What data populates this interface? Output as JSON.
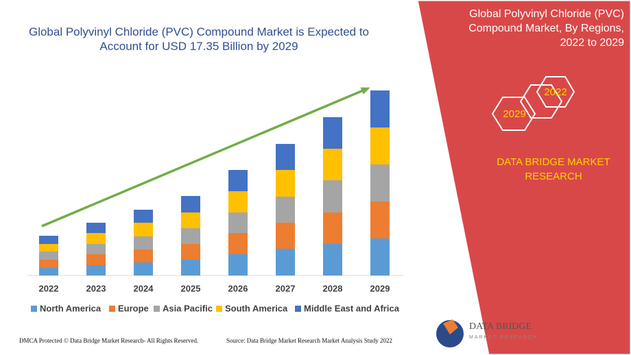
{
  "chart_data": {
    "type": "stacked-bar",
    "title": "Global Polyvinyl Chloride (PVC) Compound Market is Expected to Account for USD 17.35 Billion by 2029",
    "categories": [
      "2022",
      "2023",
      "2024",
      "2025",
      "2026",
      "2027",
      "2028",
      "2029"
    ],
    "series": [
      {
        "name": "North America",
        "color": "#5b9bd5",
        "values": [
          11,
          15,
          19,
          23,
          31,
          39,
          46,
          54
        ]
      },
      {
        "name": "Europe",
        "color": "#ed7d31",
        "values": [
          12,
          16,
          19,
          23,
          31,
          38,
          46,
          54
        ]
      },
      {
        "name": "Asia Pacific",
        "color": "#a5a5a5",
        "values": [
          12,
          15,
          19,
          23,
          30,
          38,
          47,
          54
        ]
      },
      {
        "name": "South America",
        "color": "#ffc000",
        "values": [
          11,
          16,
          20,
          23,
          31,
          39,
          46,
          54
        ]
      },
      {
        "name": "Middle East and Africa",
        "color": "#4472c4",
        "values": [
          12,
          15,
          19,
          24,
          31,
          38,
          46,
          54
        ]
      }
    ],
    "trend_color": "#70ad47"
  },
  "panel": {
    "title": "Global Polyvinyl Chloride (PVC) Compound Market, By Regions, 2022 to 2029",
    "hexagons": [
      "2022",
      "2029"
    ],
    "brand": "DATA BRIDGE MARKET RESEARCH"
  },
  "footer": {
    "left": "DMCA Protected © Data Bridge Market Research- All Rights Reserved.",
    "right": "Source: Data Bridge Market Research Market Analysis Study 2022"
  },
  "logo": {
    "name": "DATA BRIDGE",
    "tagline": "MARKET RESEARCH"
  }
}
